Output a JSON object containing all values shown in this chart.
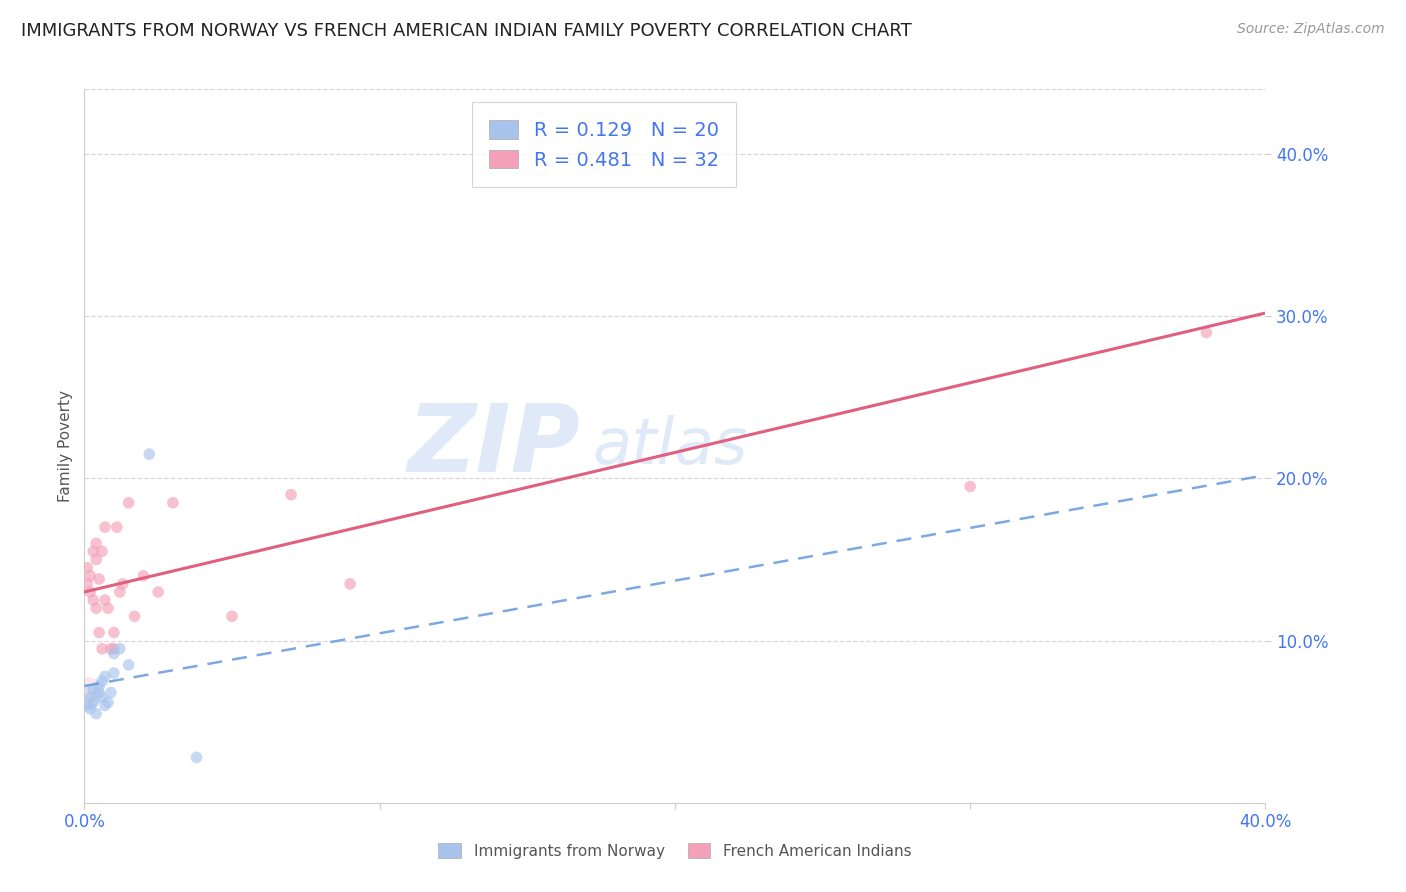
{
  "title": "IMMIGRANTS FROM NORWAY VS FRENCH AMERICAN INDIAN FAMILY POVERTY CORRELATION CHART",
  "source": "Source: ZipAtlas.com",
  "ylabel": "Family Poverty",
  "ytick_values": [
    0.1,
    0.2,
    0.3,
    0.4
  ],
  "xlim": [
    0.0,
    0.4
  ],
  "ylim": [
    0.0,
    0.44
  ],
  "watermark_zip": "ZIP",
  "watermark_atlas": "atlas",
  "norway_color": "#a8c4ec",
  "french_indian_color": "#f4a0b8",
  "norway_R": 0.129,
  "norway_N": 20,
  "french_indian_R": 0.481,
  "french_indian_N": 32,
  "norway_x": [
    0.001,
    0.002,
    0.002,
    0.003,
    0.003,
    0.004,
    0.005,
    0.005,
    0.006,
    0.006,
    0.007,
    0.007,
    0.008,
    0.009,
    0.01,
    0.01,
    0.012,
    0.015,
    0.022,
    0.038
  ],
  "norway_y": [
    0.06,
    0.065,
    0.058,
    0.07,
    0.062,
    0.055,
    0.068,
    0.072,
    0.075,
    0.065,
    0.078,
    0.06,
    0.062,
    0.068,
    0.092,
    0.08,
    0.095,
    0.085,
    0.215,
    0.028
  ],
  "french_x": [
    0.001,
    0.001,
    0.002,
    0.002,
    0.003,
    0.003,
    0.004,
    0.004,
    0.004,
    0.005,
    0.005,
    0.006,
    0.006,
    0.007,
    0.007,
    0.008,
    0.009,
    0.01,
    0.01,
    0.011,
    0.012,
    0.013,
    0.015,
    0.017,
    0.02,
    0.025,
    0.03,
    0.05,
    0.07,
    0.09,
    0.3,
    0.38
  ],
  "french_y": [
    0.135,
    0.145,
    0.13,
    0.14,
    0.125,
    0.155,
    0.15,
    0.12,
    0.16,
    0.105,
    0.138,
    0.095,
    0.155,
    0.17,
    0.125,
    0.12,
    0.095,
    0.095,
    0.105,
    0.17,
    0.13,
    0.135,
    0.185,
    0.115,
    0.14,
    0.13,
    0.185,
    0.115,
    0.19,
    0.135,
    0.195,
    0.29
  ],
  "norway_line_x": [
    0.0,
    0.4
  ],
  "norway_line_y": [
    0.072,
    0.202
  ],
  "french_line_x": [
    0.0,
    0.4
  ],
  "french_line_y": [
    0.13,
    0.302
  ],
  "norway_line_color": "#6699dd",
  "french_line_color": "#e06080",
  "norway_line_style": "--",
  "french_line_style": "-",
  "legend_norway_color": "#a8c4ec",
  "legend_french_color": "#f4a0b8",
  "title_fontsize": 13,
  "axis_label_fontsize": 11,
  "tick_fontsize": 12,
  "legend_fontsize": 14,
  "source_fontsize": 10,
  "watermark_fontsize": 68,
  "dot_size": 70,
  "dot_alpha": 0.65,
  "background_color": "#ffffff",
  "grid_color": "#d8d8d8",
  "tick_color": "#4477ee",
  "title_color": "#222222"
}
